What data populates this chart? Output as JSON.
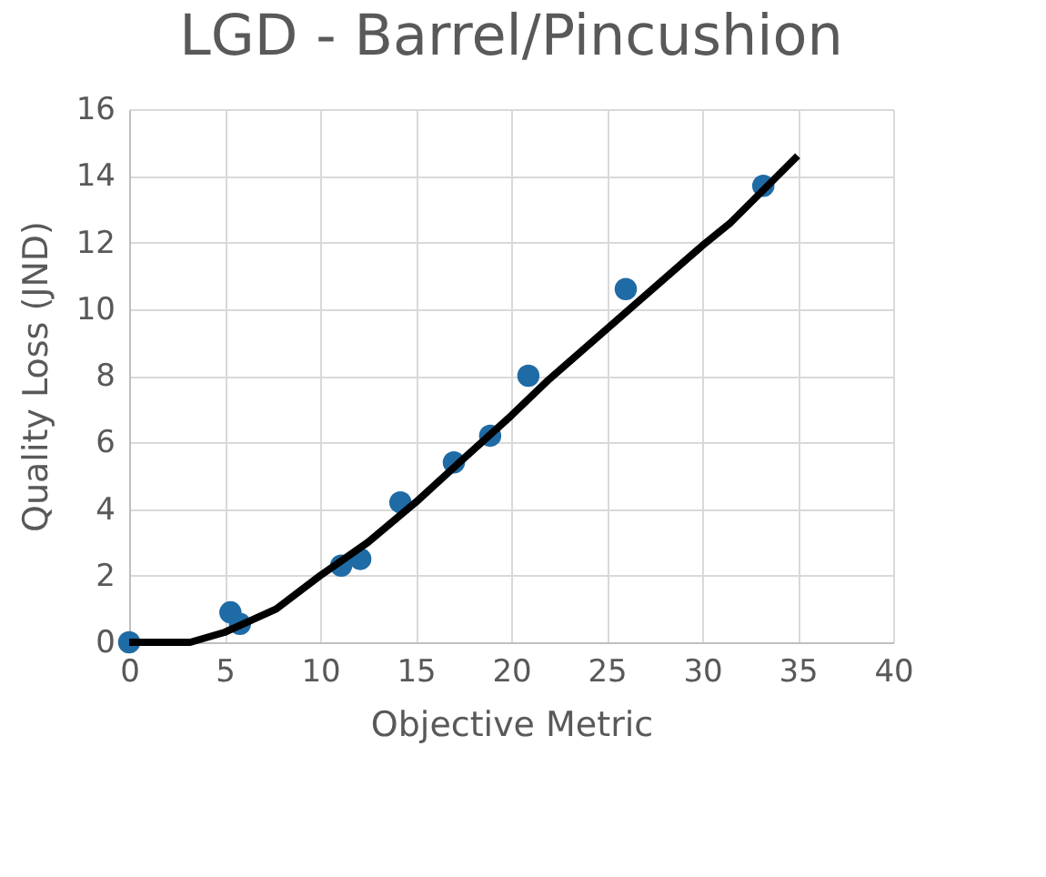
{
  "chart_data": {
    "type": "scatter",
    "title": "LGD - Barrel/Pincushion",
    "xlabel": "Objective Metric",
    "ylabel": "Quality Loss (JND)",
    "xlim": [
      0,
      40
    ],
    "xticks": [
      0,
      5,
      10,
      15,
      20,
      25,
      30,
      35,
      40
    ],
    "ylim": [
      0,
      16
    ],
    "yticks": [
      0,
      2,
      4,
      6,
      8,
      10,
      12,
      14,
      16
    ],
    "grid": true,
    "marker": "circle",
    "series": [
      {
        "color": "#1f6ba5",
        "x": [
          0,
          5.3,
          5.8,
          11.1,
          12.1,
          14.2,
          17.0,
          18.9,
          20.9,
          26.0,
          33.2
        ],
        "values": [
          0,
          0.9,
          0.55,
          2.3,
          2.5,
          4.2,
          5.4,
          6.2,
          8.0,
          10.6,
          13.7
        ]
      },
      {
        "type": "line",
        "color": "#000000",
        "marker": "none",
        "x": [
          0,
          3.2,
          5,
          7.7,
          10,
          12.5,
          15,
          17.2,
          20,
          22,
          25,
          26.8,
          30,
          31.5,
          35
        ],
        "values": [
          0,
          0,
          0.3,
          1.0,
          2.0,
          3.0,
          4.2,
          5.35,
          6.8,
          7.9,
          9.4,
          10.3,
          11.9,
          12.6,
          14.6
        ]
      }
    ]
  }
}
